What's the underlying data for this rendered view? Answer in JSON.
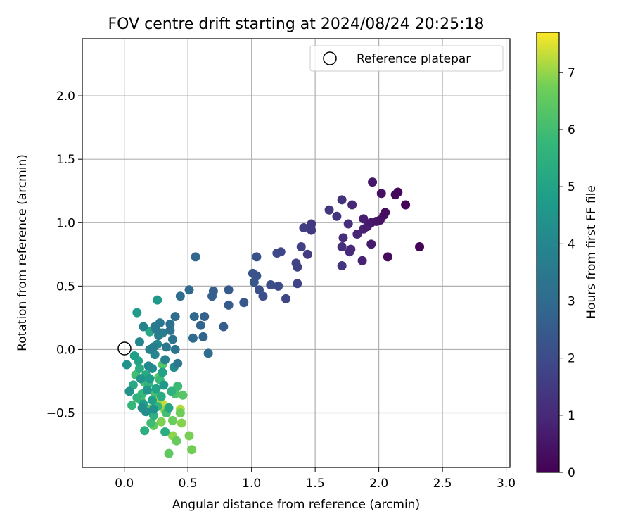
{
  "chart_data": {
    "type": "scatter",
    "title": "FOV centre drift starting at 2024/08/24 20:25:18",
    "xlabel": "Angular distance from reference (arcmin)",
    "ylabel": "Rotation from reference (arcmin)",
    "xlim": [
      -0.33,
      3.03
    ],
    "ylim": [
      -0.93,
      2.45
    ],
    "xticks": [
      "0.0",
      "0.5",
      "1.0",
      "1.5",
      "2.0",
      "2.5",
      "3.0"
    ],
    "yticks": [
      "−0.5",
      "0.0",
      "0.5",
      "1.0",
      "1.5",
      "2.0"
    ],
    "grid": true,
    "legend": {
      "placement": "top-right",
      "entries": [
        "Reference platepar"
      ]
    },
    "reference_point": {
      "x": 0.0,
      "y": 0.0
    },
    "colorbar": {
      "label": "Hours from first FF file",
      "range": [
        0,
        7.7
      ],
      "ticks": [
        "0",
        "1",
        "2",
        "3",
        "4",
        "5",
        "6",
        "7"
      ],
      "colormap": "viridis"
    },
    "points": [
      {
        "x": 2.32,
        "y": 0.81,
        "h": 0.05
      },
      {
        "x": 2.21,
        "y": 1.14,
        "h": 0.1
      },
      {
        "x": 2.15,
        "y": 1.24,
        "h": 0.15
      },
      {
        "x": 2.13,
        "y": 1.22,
        "h": 0.2
      },
      {
        "x": 2.07,
        "y": 0.73,
        "h": 0.25
      },
      {
        "x": 2.05,
        "y": 1.08,
        "h": 0.3
      },
      {
        "x": 2.04,
        "y": 1.06,
        "h": 0.35
      },
      {
        "x": 2.02,
        "y": 1.23,
        "h": 0.4
      },
      {
        "x": 2.01,
        "y": 1.02,
        "h": 0.45
      },
      {
        "x": 1.98,
        "y": 1.01,
        "h": 0.5
      },
      {
        "x": 1.95,
        "y": 1.32,
        "h": 0.55
      },
      {
        "x": 1.94,
        "y": 1.0,
        "h": 0.6
      },
      {
        "x": 1.94,
        "y": 0.83,
        "h": 0.65
      },
      {
        "x": 1.91,
        "y": 0.97,
        "h": 0.7
      },
      {
        "x": 1.88,
        "y": 1.03,
        "h": 0.75
      },
      {
        "x": 1.88,
        "y": 0.95,
        "h": 0.8
      },
      {
        "x": 1.87,
        "y": 0.7,
        "h": 0.85
      },
      {
        "x": 1.83,
        "y": 0.91,
        "h": 0.9
      },
      {
        "x": 1.79,
        "y": 1.14,
        "h": 0.95
      },
      {
        "x": 1.78,
        "y": 0.79,
        "h": 1.0
      },
      {
        "x": 1.77,
        "y": 0.77,
        "h": 1.05
      },
      {
        "x": 1.76,
        "y": 0.99,
        "h": 1.1
      },
      {
        "x": 1.72,
        "y": 0.88,
        "h": 1.15
      },
      {
        "x": 1.71,
        "y": 0.81,
        "h": 1.2
      },
      {
        "x": 1.71,
        "y": 1.18,
        "h": 1.25
      },
      {
        "x": 1.71,
        "y": 0.66,
        "h": 1.3
      },
      {
        "x": 1.67,
        "y": 1.05,
        "h": 1.35
      },
      {
        "x": 1.61,
        "y": 1.1,
        "h": 1.4
      },
      {
        "x": 1.47,
        "y": 0.99,
        "h": 1.45
      },
      {
        "x": 1.47,
        "y": 0.94,
        "h": 1.5
      },
      {
        "x": 1.44,
        "y": 0.75,
        "h": 1.55
      },
      {
        "x": 1.41,
        "y": 0.96,
        "h": 1.6
      },
      {
        "x": 1.39,
        "y": 0.81,
        "h": 1.65
      },
      {
        "x": 1.36,
        "y": 0.65,
        "h": 1.7
      },
      {
        "x": 1.35,
        "y": 0.68,
        "h": 1.75
      },
      {
        "x": 1.36,
        "y": 0.52,
        "h": 1.8
      },
      {
        "x": 1.27,
        "y": 0.4,
        "h": 1.85
      },
      {
        "x": 1.23,
        "y": 0.77,
        "h": 1.9
      },
      {
        "x": 1.2,
        "y": 0.76,
        "h": 1.95
      },
      {
        "x": 1.21,
        "y": 0.5,
        "h": 2.0
      },
      {
        "x": 1.15,
        "y": 0.51,
        "h": 2.05
      },
      {
        "x": 1.09,
        "y": 0.42,
        "h": 2.1
      },
      {
        "x": 1.06,
        "y": 0.47,
        "h": 2.15
      },
      {
        "x": 1.04,
        "y": 0.73,
        "h": 2.2
      },
      {
        "x": 1.04,
        "y": 0.58,
        "h": 2.25
      },
      {
        "x": 1.01,
        "y": 0.6,
        "h": 2.3
      },
      {
        "x": 1.02,
        "y": 0.53,
        "h": 2.35
      },
      {
        "x": 0.94,
        "y": 0.37,
        "h": 2.4
      },
      {
        "x": 0.82,
        "y": 0.47,
        "h": 2.45
      },
      {
        "x": 0.82,
        "y": 0.35,
        "h": 2.5
      },
      {
        "x": 0.78,
        "y": 0.18,
        "h": 2.55
      },
      {
        "x": 0.7,
        "y": 0.46,
        "h": 2.6
      },
      {
        "x": 0.69,
        "y": 0.42,
        "h": 2.65
      },
      {
        "x": 0.63,
        "y": 0.26,
        "h": 2.7
      },
      {
        "x": 0.6,
        "y": 0.19,
        "h": 2.75
      },
      {
        "x": 0.62,
        "y": 0.1,
        "h": 2.8
      },
      {
        "x": 0.56,
        "y": 0.73,
        "h": 2.85
      },
      {
        "x": 0.55,
        "y": 0.26,
        "h": 2.9
      },
      {
        "x": 0.54,
        "y": 0.09,
        "h": 2.95
      },
      {
        "x": 0.51,
        "y": 0.47,
        "h": 3.0
      },
      {
        "x": 0.66,
        "y": -0.03,
        "h": 3.05
      },
      {
        "x": 0.44,
        "y": 0.42,
        "h": 3.1
      },
      {
        "x": 0.4,
        "y": 0.26,
        "h": 3.15
      },
      {
        "x": 0.36,
        "y": 0.2,
        "h": 3.2
      },
      {
        "x": 0.36,
        "y": 0.15,
        "h": 3.25
      },
      {
        "x": 0.38,
        "y": 0.08,
        "h": 3.3
      },
      {
        "x": 0.4,
        "y": -0.0,
        "h": 3.35
      },
      {
        "x": 0.33,
        "y": 0.02,
        "h": 3.4
      },
      {
        "x": 0.42,
        "y": -0.11,
        "h": 3.45
      },
      {
        "x": 0.28,
        "y": 0.21,
        "h": 3.5
      },
      {
        "x": 0.25,
        "y": 0.16,
        "h": 3.55
      },
      {
        "x": 0.24,
        "y": 0.18,
        "h": 3.6
      },
      {
        "x": 0.3,
        "y": 0.13,
        "h": 3.65
      },
      {
        "x": 0.27,
        "y": 0.11,
        "h": 3.7
      },
      {
        "x": 0.23,
        "y": 0.02,
        "h": 3.75
      },
      {
        "x": 0.32,
        "y": -0.08,
        "h": 3.8
      },
      {
        "x": 0.2,
        "y": 0.0,
        "h": 3.85
      },
      {
        "x": 0.15,
        "y": 0.18,
        "h": 3.9
      },
      {
        "x": 0.12,
        "y": 0.06,
        "h": 3.95
      },
      {
        "x": 0.24,
        "y": -0.04,
        "h": 4.0
      },
      {
        "x": 0.26,
        "y": 0.04,
        "h": 4.05
      },
      {
        "x": 0.19,
        "y": -0.13,
        "h": 4.1
      },
      {
        "x": 0.39,
        "y": -0.14,
        "h": 4.15
      },
      {
        "x": 0.22,
        "y": -0.15,
        "h": 4.2
      },
      {
        "x": 0.14,
        "y": -0.46,
        "h": 4.25
      },
      {
        "x": 0.17,
        "y": -0.49,
        "h": 4.3
      },
      {
        "x": 0.23,
        "y": -0.47,
        "h": 4.35
      },
      {
        "x": 0.04,
        "y": -0.33,
        "h": 4.4
      },
      {
        "x": 0.02,
        "y": -0.12,
        "h": 4.45
      },
      {
        "x": 0.13,
        "y": -0.23,
        "h": 4.5
      },
      {
        "x": 0.18,
        "y": -0.32,
        "h": 4.55
      },
      {
        "x": 0.31,
        "y": -0.28,
        "h": 4.6
      },
      {
        "x": 0.26,
        "y": 0.39,
        "h": 4.65
      },
      {
        "x": 0.1,
        "y": 0.29,
        "h": 4.7
      },
      {
        "x": 0.2,
        "y": -0.23,
        "h": 4.75
      },
      {
        "x": 0.15,
        "y": -0.43,
        "h": 4.8
      },
      {
        "x": 0.08,
        "y": -0.05,
        "h": 4.85
      },
      {
        "x": 0.22,
        "y": -0.4,
        "h": 4.9
      },
      {
        "x": 0.3,
        "y": -0.18,
        "h": 4.95
      },
      {
        "x": 0.25,
        "y": -0.31,
        "h": 5.0
      },
      {
        "x": 0.11,
        "y": -0.09,
        "h": 5.05
      },
      {
        "x": 0.35,
        "y": -0.46,
        "h": 5.1
      },
      {
        "x": 0.2,
        "y": 0.14,
        "h": 5.15
      },
      {
        "x": 0.07,
        "y": -0.28,
        "h": 5.2
      },
      {
        "x": 0.17,
        "y": -0.2,
        "h": 5.25
      },
      {
        "x": 0.29,
        "y": -0.37,
        "h": 5.3
      },
      {
        "x": 0.12,
        "y": -0.15,
        "h": 5.35
      },
      {
        "x": 0.32,
        "y": -0.65,
        "h": 5.4
      },
      {
        "x": 0.16,
        "y": -0.64,
        "h": 5.45
      },
      {
        "x": 0.23,
        "y": -0.52,
        "h": 5.5
      },
      {
        "x": 0.37,
        "y": -0.33,
        "h": 5.55
      },
      {
        "x": 0.1,
        "y": -0.38,
        "h": 5.6
      },
      {
        "x": 0.19,
        "y": -0.27,
        "h": 5.65
      },
      {
        "x": 0.26,
        "y": -0.45,
        "h": 5.7
      },
      {
        "x": 0.06,
        "y": -0.44,
        "h": 5.75
      },
      {
        "x": 0.14,
        "y": -0.35,
        "h": 5.8
      },
      {
        "x": 0.28,
        "y": -0.24,
        "h": 5.85
      },
      {
        "x": 0.42,
        "y": -0.29,
        "h": 5.9
      },
      {
        "x": 0.21,
        "y": -0.58,
        "h": 5.95
      },
      {
        "x": 0.09,
        "y": -0.2,
        "h": 6.0
      },
      {
        "x": 0.33,
        "y": -0.5,
        "h": 6.05
      },
      {
        "x": 0.24,
        "y": -0.34,
        "h": 6.1
      },
      {
        "x": 0.16,
        "y": -0.26,
        "h": 6.15
      },
      {
        "x": 0.4,
        "y": -0.35,
        "h": 6.2
      },
      {
        "x": 0.13,
        "y": -0.4,
        "h": 6.25
      },
      {
        "x": 0.3,
        "y": -0.12,
        "h": 6.3
      },
      {
        "x": 0.46,
        "y": -0.36,
        "h": 6.35
      },
      {
        "x": 0.2,
        "y": -0.47,
        "h": 6.4
      },
      {
        "x": 0.27,
        "y": -0.22,
        "h": 6.45
      },
      {
        "x": 0.35,
        "y": -0.82,
        "h": 6.5
      },
      {
        "x": 0.23,
        "y": -0.6,
        "h": 6.55
      },
      {
        "x": 0.41,
        "y": -0.72,
        "h": 6.6
      },
      {
        "x": 0.38,
        "y": -0.56,
        "h": 6.65
      },
      {
        "x": 0.44,
        "y": -0.5,
        "h": 6.7
      },
      {
        "x": 0.53,
        "y": -0.79,
        "h": 6.75
      },
      {
        "x": 0.51,
        "y": -0.68,
        "h": 6.8
      },
      {
        "x": 0.29,
        "y": -0.57,
        "h": 6.85
      },
      {
        "x": 0.45,
        "y": -0.58,
        "h": 6.9
      },
      {
        "x": 0.38,
        "y": -0.68,
        "h": 6.95
      },
      {
        "x": 0.32,
        "y": -0.48,
        "h": 7.0
      },
      {
        "x": 0.26,
        "y": -0.42,
        "h": 7.1
      },
      {
        "x": 0.44,
        "y": -0.47,
        "h": 7.2
      },
      {
        "x": 0.31,
        "y": -0.44,
        "h": 7.3
      },
      {
        "x": 0.28,
        "y": -0.39,
        "h": 7.45
      },
      {
        "x": 0.29,
        "y": -0.42,
        "h": 7.6
      }
    ]
  }
}
